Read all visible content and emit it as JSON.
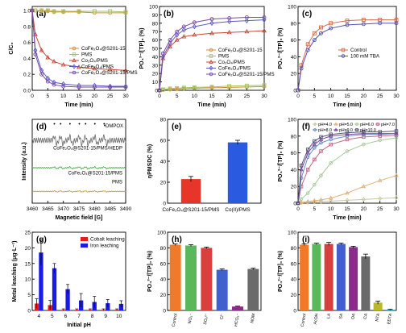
{
  "chart_data": [
    {
      "id": "a",
      "panel_label": "(a)",
      "type": "line",
      "xlabel": "Time (min)",
      "ylabel": "C/C₀",
      "xlim": [
        0,
        30
      ],
      "ylim": [
        0,
        1.05
      ],
      "xticks": [
        0,
        5,
        10,
        15,
        20,
        25,
        30
      ],
      "yticks": [
        0.0,
        0.2,
        0.4,
        0.6,
        0.8,
        1.0
      ],
      "xtick_labels": [
        "0",
        "5",
        "10",
        "15",
        "20",
        "25",
        "30"
      ],
      "ytick_labels": [
        "0.0",
        "0.2",
        "0.4",
        "0.6",
        "0.8",
        "1.0"
      ],
      "legend": "center-right",
      "x": [
        0,
        1,
        3,
        5,
        7,
        10,
        15,
        20,
        25,
        30
      ],
      "series": [
        {
          "name": "CoFe₂O₄@S201-15",
          "color": "#d98a3a",
          "marker": "circle",
          "values": [
            1.0,
            1.0,
            0.99,
            0.99,
            0.98,
            0.98,
            0.98,
            0.97,
            0.97,
            0.97
          ]
        },
        {
          "name": "PMS",
          "color": "#a5c25a",
          "marker": "square",
          "values": [
            1.0,
            1.0,
            1.0,
            1.0,
            0.99,
            0.99,
            0.99,
            0.99,
            0.99,
            0.98
          ]
        },
        {
          "name": "Co₃O₄/PMS",
          "color": "#c24a3a",
          "marker": "triangle",
          "values": [
            1.0,
            0.7,
            0.5,
            0.41,
            0.36,
            0.32,
            0.29,
            0.27,
            0.26,
            0.25
          ]
        },
        {
          "name": "CoFe₂O₄/PMS",
          "color": "#5b5bc8",
          "marker": "diamond",
          "values": [
            1.0,
            0.5,
            0.25,
            0.15,
            0.1,
            0.08,
            0.06,
            0.06,
            0.05,
            0.05
          ]
        },
        {
          "name": "CoFe₂O₄@S201-15/PMS",
          "color": "#7a4aa5",
          "marker": "circle",
          "values": [
            1.0,
            0.45,
            0.2,
            0.11,
            0.07,
            0.05,
            0.04,
            0.04,
            0.04,
            0.04
          ]
        }
      ]
    },
    {
      "id": "b",
      "panel_label": "(b)",
      "type": "line",
      "xlabel": "Time (min)",
      "ylabel": "PO₄³⁻/[TP]₀ (%)",
      "xlim": [
        0,
        30
      ],
      "ylim": [
        0,
        100
      ],
      "xticks": [
        0,
        5,
        10,
        15,
        20,
        25,
        30
      ],
      "yticks": [
        0,
        10,
        20,
        30,
        40,
        50,
        60,
        70,
        80,
        90,
        100
      ],
      "xtick_labels": [
        "0",
        "5",
        "10",
        "15",
        "20",
        "25",
        "30"
      ],
      "ytick_labels": [
        "0",
        "10",
        "20",
        "30",
        "40",
        "50",
        "60",
        "70",
        "80",
        "90",
        "100"
      ],
      "legend": "center-right",
      "x": [
        0,
        1,
        3,
        5,
        7,
        10,
        15,
        20,
        25,
        30
      ],
      "series": [
        {
          "name": "CoFe₂O₄@S201-15",
          "color": "#d98a3a",
          "marker": "circle",
          "values": [
            0,
            0.5,
            1,
            1.5,
            2,
            2.5,
            3,
            3.5,
            4,
            4.5
          ]
        },
        {
          "name": "PMS",
          "color": "#a5c25a",
          "marker": "square",
          "values": [
            0,
            1,
            2,
            2.5,
            3,
            3.5,
            4,
            5,
            5.5,
            6
          ]
        },
        {
          "name": "Co₃O₄/PMS",
          "color": "#c24a3a",
          "marker": "triangle",
          "values": [
            0,
            38,
            52,
            60,
            64,
            66,
            68,
            69,
            70,
            71
          ]
        },
        {
          "name": "CoFe₂O₄/PMS",
          "color": "#5b5bc8",
          "marker": "diamond",
          "values": [
            0,
            40,
            56,
            66,
            72,
            76,
            80,
            82,
            83,
            84
          ]
        },
        {
          "name": "CoFe₂O₄@S201-15/PMS",
          "color": "#7a4aa5",
          "marker": "circle",
          "values": [
            0,
            44,
            60,
            70,
            76,
            81,
            85,
            86,
            87,
            87
          ]
        }
      ]
    },
    {
      "id": "c",
      "panel_label": "(c)",
      "type": "line",
      "xlabel": "Time (min)",
      "ylabel": "PO₄³⁻/[TP]₀ (%)",
      "xlim": [
        0,
        30
      ],
      "ylim": [
        0,
        100
      ],
      "xticks": [
        0,
        5,
        10,
        15,
        20,
        25,
        30
      ],
      "yticks": [
        0,
        20,
        40,
        60,
        80,
        100
      ],
      "xtick_labels": [
        "0",
        "5",
        "10",
        "15",
        "20",
        "25",
        "30"
      ],
      "ytick_labels": [
        "0",
        "20",
        "40",
        "60",
        "80",
        "100"
      ],
      "legend": "center-right",
      "x": [
        0,
        1,
        3,
        5,
        7,
        10,
        15,
        20,
        25,
        30
      ],
      "series": [
        {
          "name": "Control",
          "color": "#d06a4a",
          "marker": "square",
          "values": [
            0,
            30,
            55,
            68,
            75,
            80,
            83,
            84,
            84,
            84
          ]
        },
        {
          "name": "100 mM TBA",
          "color": "#5050b0",
          "marker": "circle",
          "values": [
            0,
            26,
            48,
            60,
            68,
            74,
            78,
            79,
            80,
            80
          ]
        }
      ]
    },
    {
      "id": "d",
      "panel_label": "(d)",
      "type": "line",
      "xlabel": "Magnetic field [G]",
      "ylabel": "Intensity (a.u.)",
      "xlim": [
        3460,
        3490
      ],
      "ylim": [
        0,
        3.2
      ],
      "xticks": [
        3460,
        3465,
        3470,
        3475,
        3480,
        3485,
        3490
      ],
      "yticks": [],
      "xtick_labels": [
        "3460",
        "3465",
        "3470",
        "3475",
        "3480",
        "3485",
        "3490"
      ],
      "ytick_labels": [],
      "legend_text": "•DMPOX",
      "annotations": [
        {
          "text": "CoFe₂O₄@S201-15/PMS/HEDP",
          "series": 0
        },
        {
          "text": "CoFe₂O₄@S201-15/PMS",
          "series": 1
        },
        {
          "text": "PMS",
          "series": 2
        }
      ],
      "peak_markers_x": [
        3467.5,
        3469.5,
        3472.5,
        3475.5,
        3477.5,
        3480.5,
        3483.5
      ],
      "series": [
        {
          "color": "#6a6a6a",
          "baseline": 2.4,
          "amplitude": 0.35
        },
        {
          "color": "#48a848",
          "baseline": 1.35,
          "amplitude": 0.08
        },
        {
          "color": "#c8962a",
          "baseline": 0.45,
          "amplitude": 0.05
        }
      ]
    },
    {
      "id": "e",
      "panel_label": "(e)",
      "type": "bar",
      "ylabel": "ηPMSDC (%)",
      "ylim": [
        0,
        80
      ],
      "yticks": [
        0,
        20,
        40,
        60,
        80
      ],
      "ytick_labels": [
        "0",
        "20",
        "40",
        "60",
        "80"
      ],
      "categories": [
        "CoFe₂O₄@S201-15/PMS",
        "Co(II)/PMS"
      ],
      "values": [
        23,
        58
      ],
      "errors": [
        2.5,
        2
      ],
      "colors": [
        "#e8352a",
        "#2a5ae0"
      ]
    },
    {
      "id": "f",
      "panel_label": "(f)",
      "type": "line",
      "xlabel": "Time (min)",
      "ylabel": "PO₄³⁻/[TP]₀ (%)",
      "xlim": [
        0,
        30
      ],
      "ylim": [
        0,
        100
      ],
      "xticks": [
        0,
        5,
        10,
        15,
        20,
        25,
        30
      ],
      "yticks": [
        0,
        20,
        40,
        60,
        80,
        100
      ],
      "xtick_labels": [
        "0",
        "5",
        "10",
        "15",
        "20",
        "25",
        "30"
      ],
      "ytick_labels": [
        "0",
        "20",
        "40",
        "60",
        "80",
        "100"
      ],
      "legend": "top",
      "x": [
        0,
        1,
        3,
        5,
        7,
        10,
        15,
        20,
        25,
        30
      ],
      "series": [
        {
          "name": "pH=4.0",
          "color": "#c8c8a0",
          "marker": "diamond",
          "values": [
            0,
            0.5,
            1,
            1.5,
            2,
            2.5,
            3.5,
            4.5,
            5.5,
            6.5
          ]
        },
        {
          "name": "pH=5.0",
          "color": "#e0b07a",
          "marker": "triangle",
          "values": [
            0,
            1,
            2,
            3,
            4,
            6,
            12,
            20,
            27,
            33
          ]
        },
        {
          "name": "pH=6.0",
          "color": "#a8c89a",
          "marker": "circle",
          "values": [
            0,
            5,
            12,
            22,
            33,
            48,
            62,
            70,
            75,
            78
          ]
        },
        {
          "name": "pH=7.0",
          "color": "#c06a8a",
          "marker": "square",
          "values": [
            0,
            20,
            40,
            52,
            62,
            70,
            76,
            79,
            80,
            81
          ]
        },
        {
          "name": "pH=8.0",
          "color": "#6a8ac8",
          "marker": "circle",
          "values": [
            0,
            30,
            55,
            66,
            72,
            76,
            80,
            82,
            82,
            83
          ]
        },
        {
          "name": "pH=9.0",
          "color": "#7a4aa5",
          "marker": "triangle",
          "values": [
            0,
            40,
            60,
            70,
            76,
            80,
            82,
            83,
            83,
            83
          ]
        },
        {
          "name": "pH=10.0",
          "color": "#555577",
          "marker": "square",
          "values": [
            0,
            45,
            64,
            74,
            79,
            82,
            84,
            85,
            85,
            86
          ]
        }
      ]
    },
    {
      "id": "g",
      "panel_label": "(g)",
      "type": "bar",
      "xlabel": "Initial pH",
      "ylabel": "Metal leaching (μg·L⁻¹)",
      "ylim": [
        0,
        25
      ],
      "yticks": [
        0,
        5,
        10,
        15,
        20,
        25
      ],
      "ytick_labels": [
        "0",
        "5",
        "10",
        "15",
        "20",
        "25"
      ],
      "legend": "top-right",
      "categories": [
        "4",
        "5",
        "6",
        "7",
        "8",
        "9",
        "10"
      ],
      "series": [
        {
          "name": "Cobalt leaching",
          "color": "#e81a1a",
          "values": [
            2.2,
            1.7,
            0.2,
            0.2,
            0.2,
            0.2,
            0.2
          ],
          "errors": [
            1.5,
            1.5,
            0.3,
            0.3,
            0.3,
            0.3,
            0.3
          ]
        },
        {
          "name": "Iron leaching",
          "color": "#1a1ae8",
          "values": [
            18.5,
            13.5,
            6.8,
            3.2,
            2.7,
            2.3,
            2.1
          ],
          "errors": [
            4,
            1.5,
            1.5,
            2.2,
            1.8,
            1.2,
            1.0
          ]
        }
      ]
    },
    {
      "id": "h",
      "panel_label": "(h)",
      "type": "bar",
      "ylabel": "PO₄³⁻/[TP]₀ (%)",
      "ylim": [
        0,
        100
      ],
      "yticks": [
        0,
        20,
        40,
        60,
        80,
        100
      ],
      "ytick_labels": [
        "0",
        "20",
        "40",
        "60",
        "80",
        "100"
      ],
      "categories": [
        "Control",
        "NO₃⁻",
        "SO₄²⁻",
        "Cl⁻",
        "HCO₃⁻",
        "NOM"
      ],
      "values": [
        84,
        83,
        80,
        52,
        5,
        53
      ],
      "errors": [
        1,
        1,
        1,
        1,
        0.5,
        1
      ],
      "colors": [
        "#f07a2a",
        "#5ab85a",
        "#d84040",
        "#4060d0",
        "#8a2a8a",
        "#6a6a6a"
      ]
    },
    {
      "id": "i",
      "panel_label": "(i)",
      "type": "bar",
      "ylabel": "PO₄³⁻/[TP]₀ (%)",
      "ylim": [
        0,
        100
      ],
      "yticks": [
        0,
        20,
        40,
        60,
        80,
        100
      ],
      "ytick_labels": [
        "0",
        "20",
        "40",
        "60",
        "80",
        "100"
      ],
      "categories": [
        "Control",
        "AcOH",
        "LA",
        "SA",
        "OA",
        "CA",
        "NTA",
        "EDTA"
      ],
      "values": [
        84,
        85,
        85,
        85,
        81,
        69,
        10,
        1
      ],
      "errors": [
        1,
        1,
        2,
        1,
        1,
        3,
        2,
        0.5
      ],
      "colors": [
        "#f07a2a",
        "#5ab85a",
        "#d84040",
        "#4060d0",
        "#8a2a8a",
        "#6a6a6a",
        "#b8b82a",
        "#3ab8c8"
      ]
    }
  ]
}
